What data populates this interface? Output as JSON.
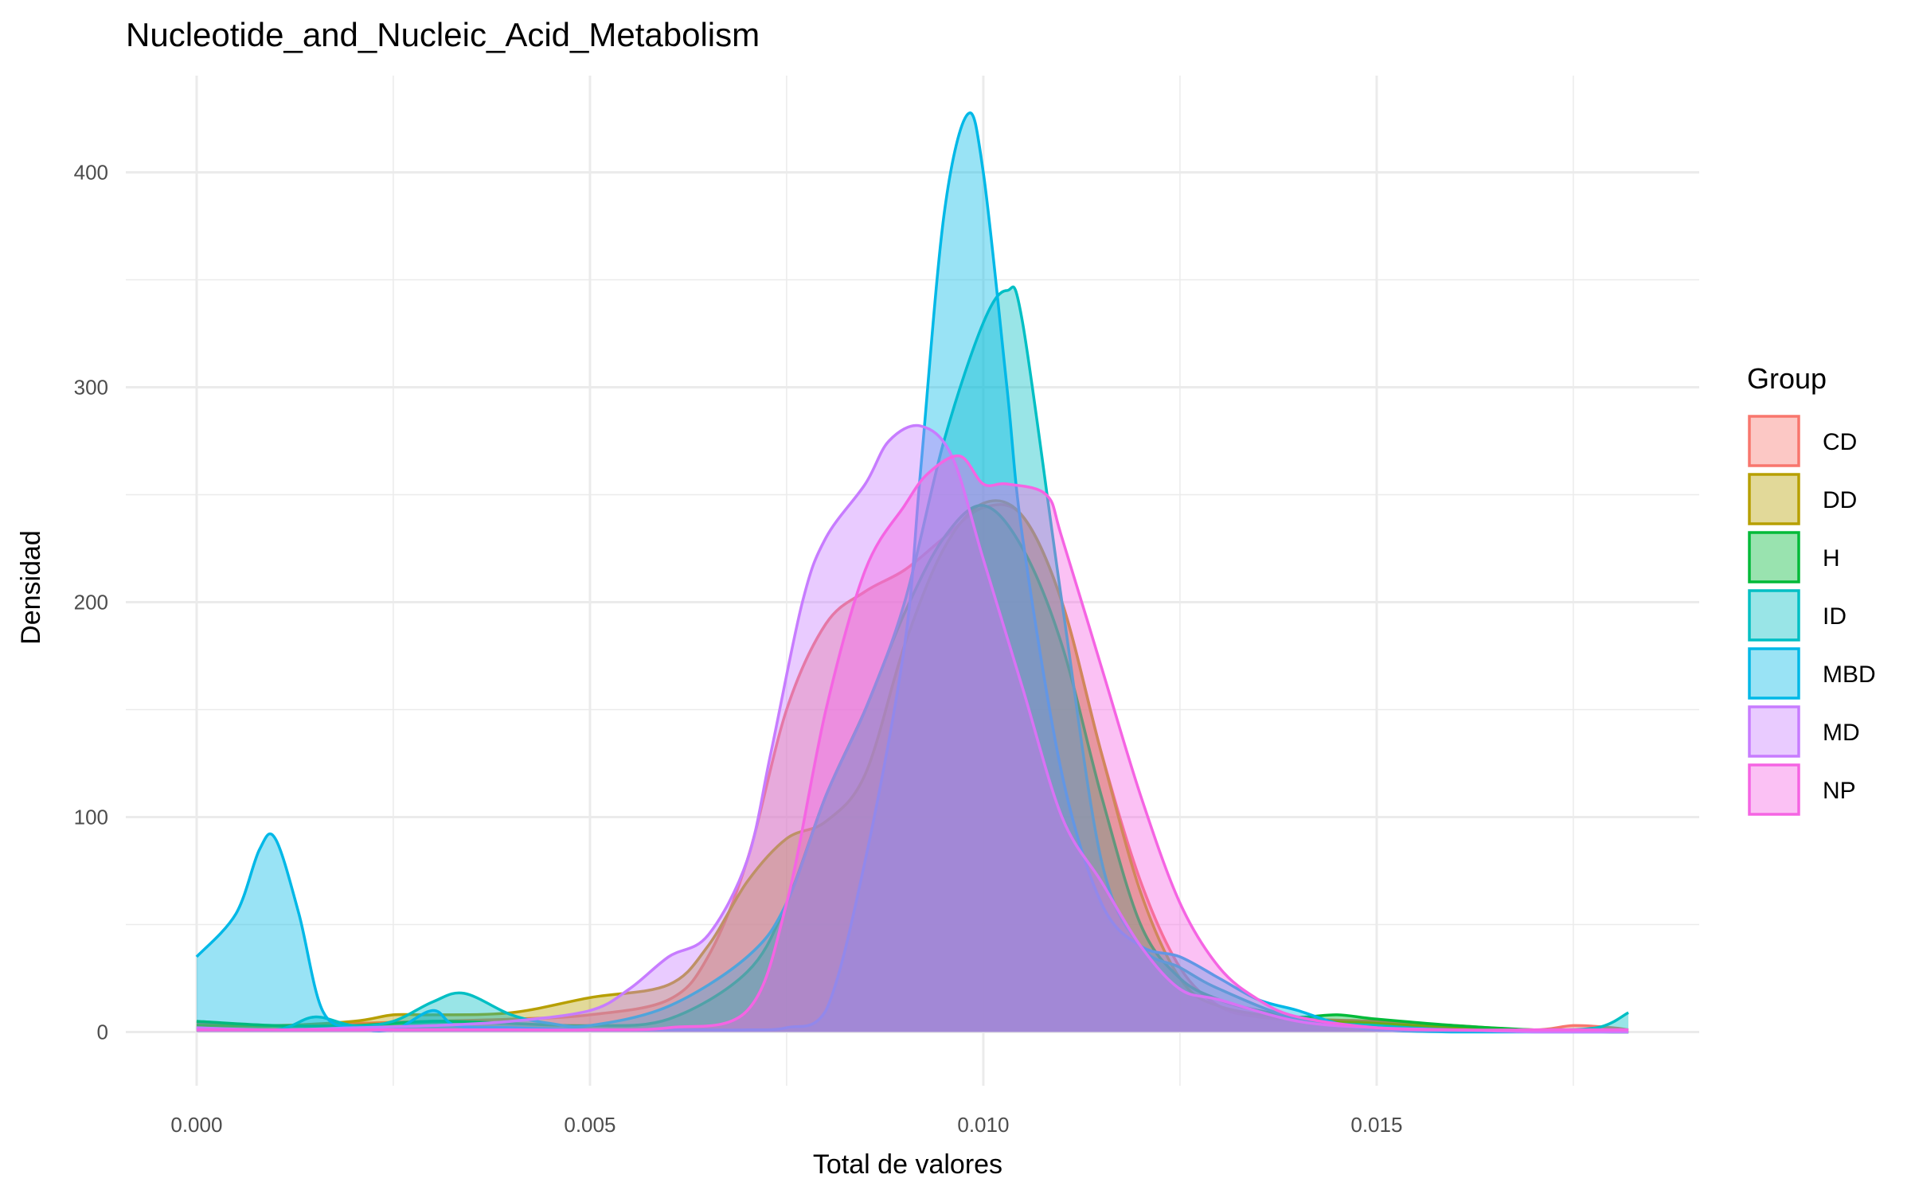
{
  "chart_data": {
    "type": "area",
    "title": "Nucleotide_and_Nucleic_Acid_Metabolism",
    "xlabel": "Total de valores",
    "ylabel": "Densidad",
    "xlim": [
      -0.0009,
      0.0191
    ],
    "ylim": [
      -25,
      445
    ],
    "x_ticks": [
      0.0,
      0.005,
      0.01,
      0.015
    ],
    "x_tick_labels": [
      "0.000",
      "0.005",
      "0.010",
      "0.015"
    ],
    "y_ticks": [
      0,
      100,
      200,
      300,
      400
    ],
    "y_tick_labels": [
      "0",
      "100",
      "200",
      "300",
      "400"
    ],
    "grid": true,
    "legend": {
      "title": "Group",
      "position": "right"
    },
    "fill_opacity": 0.4,
    "x_domain": [
      0.0,
      0.0182
    ],
    "series": [
      {
        "name": "CD",
        "color": "#F8766D",
        "x": [
          0,
          0.001,
          0.002,
          0.003,
          0.004,
          0.005,
          0.006,
          0.0065,
          0.007,
          0.0075,
          0.008,
          0.0085,
          0.009,
          0.0095,
          0.01,
          0.0105,
          0.011,
          0.0115,
          0.012,
          0.0125,
          0.013,
          0.0135,
          0.014,
          0.015,
          0.016,
          0.017,
          0.0175,
          0.018,
          0.0182
        ],
        "values": [
          4,
          3,
          4,
          5,
          6,
          8,
          15,
          35,
          80,
          150,
          190,
          205,
          215,
          230,
          244,
          240,
          200,
          130,
          70,
          30,
          12,
          7,
          6,
          5,
          3,
          1,
          3,
          2,
          1
        ]
      },
      {
        "name": "DD",
        "color": "#B79F00",
        "x": [
          0,
          0.001,
          0.002,
          0.0025,
          0.003,
          0.004,
          0.005,
          0.006,
          0.0065,
          0.007,
          0.0075,
          0.008,
          0.0085,
          0.009,
          0.0095,
          0.01,
          0.0105,
          0.011,
          0.0115,
          0.012,
          0.0125,
          0.013,
          0.014,
          0.015,
          0.016,
          0.017,
          0.018,
          0.0182
        ],
        "values": [
          3,
          3,
          5,
          8,
          8,
          9,
          16,
          22,
          40,
          70,
          90,
          98,
          120,
          180,
          225,
          246,
          240,
          200,
          130,
          65,
          25,
          12,
          6,
          4,
          2,
          1,
          0,
          0
        ]
      },
      {
        "name": "H",
        "color": "#00BA38",
        "x": [
          0,
          0.001,
          0.002,
          0.003,
          0.004,
          0.005,
          0.006,
          0.007,
          0.0075,
          0.008,
          0.0085,
          0.009,
          0.0095,
          0.01,
          0.0105,
          0.011,
          0.0115,
          0.012,
          0.0125,
          0.013,
          0.0135,
          0.014,
          0.0145,
          0.015,
          0.016,
          0.017,
          0.018,
          0.0182
        ],
        "values": [
          5,
          3,
          3,
          5,
          4,
          3,
          6,
          28,
          60,
          110,
          150,
          195,
          230,
          245,
          225,
          180,
          110,
          50,
          25,
          15,
          10,
          7,
          8,
          6,
          3,
          1,
          0,
          0
        ]
      },
      {
        "name": "ID",
        "color": "#00BFC4",
        "x": [
          0,
          0.001,
          0.0015,
          0.002,
          0.0025,
          0.003,
          0.0034,
          0.004,
          0.0045,
          0.005,
          0.006,
          0.007,
          0.0075,
          0.008,
          0.0085,
          0.009,
          0.0095,
          0.01,
          0.0103,
          0.0105,
          0.011,
          0.0115,
          0.012,
          0.0125,
          0.013,
          0.014,
          0.015,
          0.016,
          0.017,
          0.0178,
          0.0182
        ],
        "values": [
          2,
          1,
          7,
          3,
          5,
          14,
          18,
          8,
          4,
          3,
          12,
          35,
          60,
          110,
          150,
          200,
          275,
          330,
          345,
          330,
          200,
          80,
          40,
          30,
          20,
          6,
          3,
          1,
          1,
          2,
          9
        ]
      },
      {
        "name": "MBD",
        "color": "#00B8E7",
        "x": [
          0,
          0.0005,
          0.0008,
          0.001,
          0.0013,
          0.0016,
          0.002,
          0.0025,
          0.003,
          0.0033,
          0.004,
          0.005,
          0.006,
          0.0065,
          0.007,
          0.0075,
          0.008,
          0.0085,
          0.009,
          0.0092,
          0.0095,
          0.0098,
          0.01,
          0.0103,
          0.0105,
          0.011,
          0.0115,
          0.012,
          0.0125,
          0.013,
          0.0135,
          0.014,
          0.0145,
          0.015,
          0.016,
          0.017,
          0.018,
          0.0182
        ],
        "values": [
          35,
          55,
          85,
          90,
          55,
          10,
          2,
          1,
          10,
          3,
          2,
          1,
          1,
          1,
          1,
          2,
          10,
          80,
          180,
          260,
          380,
          427,
          400,
          300,
          230,
          120,
          60,
          40,
          35,
          25,
          15,
          10,
          4,
          1,
          0,
          0,
          0,
          0
        ]
      },
      {
        "name": "MD",
        "color": "#C77CFF",
        "x": [
          0,
          0.001,
          0.002,
          0.003,
          0.004,
          0.005,
          0.0055,
          0.006,
          0.0065,
          0.007,
          0.0073,
          0.0077,
          0.008,
          0.0085,
          0.0088,
          0.0092,
          0.0096,
          0.01,
          0.0105,
          0.011,
          0.0115,
          0.012,
          0.0125,
          0.013,
          0.014,
          0.015,
          0.016,
          0.017,
          0.018,
          0.0182
        ],
        "values": [
          2,
          1,
          2,
          3,
          5,
          10,
          20,
          35,
          45,
          80,
          130,
          200,
          230,
          255,
          275,
          282,
          268,
          220,
          160,
          100,
          70,
          40,
          20,
          15,
          5,
          2,
          1,
          0,
          0,
          0
        ]
      },
      {
        "name": "NP",
        "color": "#F564E3",
        "x": [
          0,
          0.001,
          0.002,
          0.003,
          0.004,
          0.005,
          0.006,
          0.007,
          0.0075,
          0.008,
          0.0085,
          0.009,
          0.0093,
          0.0097,
          0.01,
          0.0103,
          0.0108,
          0.011,
          0.0115,
          0.012,
          0.0125,
          0.013,
          0.0135,
          0.014,
          0.015,
          0.016,
          0.017,
          0.018,
          0.0182
        ],
        "values": [
          1,
          1,
          1,
          1,
          1,
          1,
          2,
          10,
          60,
          150,
          215,
          245,
          260,
          268,
          255,
          255,
          250,
          230,
          170,
          110,
          60,
          30,
          15,
          7,
          2,
          1,
          1,
          1,
          1
        ]
      }
    ]
  }
}
